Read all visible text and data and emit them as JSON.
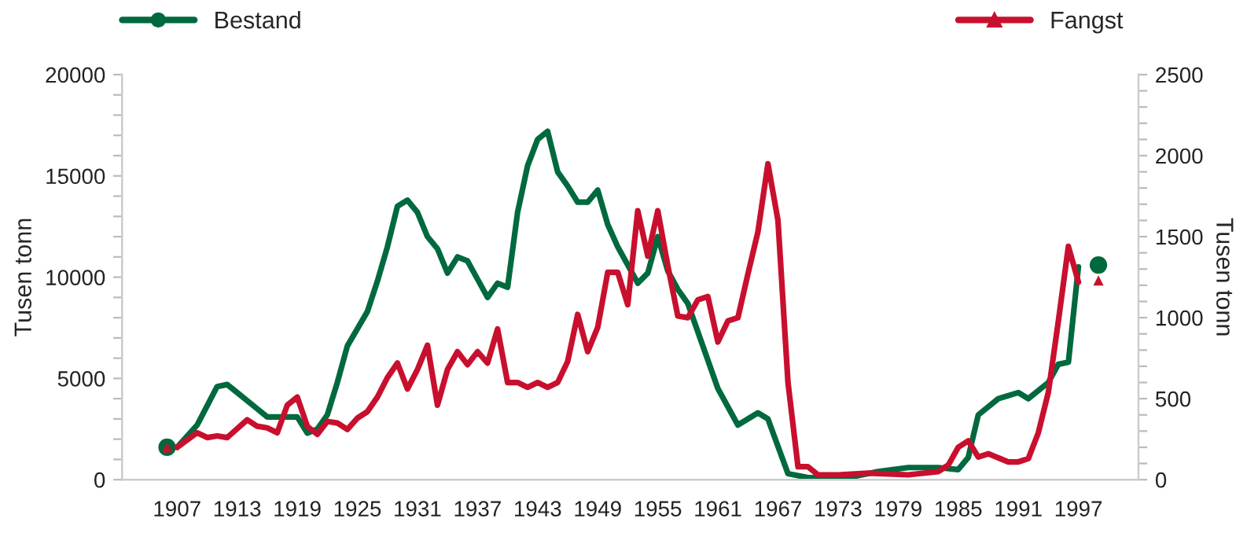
{
  "chart_data": {
    "type": "line",
    "ylabel": "Tusen tonn",
    "y2label": "Tusen tonn",
    "legend": "top",
    "grid": false,
    "line_style": "solid",
    "xlim": [
      1901.5,
      2003
    ],
    "xticks": [
      1907,
      1913,
      1919,
      1925,
      1931,
      1937,
      1943,
      1949,
      1955,
      1961,
      1967,
      1973,
      1979,
      1985,
      1991,
      1997
    ],
    "ylim": [
      0,
      20000
    ],
    "yticks": [
      0,
      {
        "value": 1000,
        "label": null
      },
      {
        "value": 2000,
        "label": null
      },
      {
        "value": 3000,
        "label": null
      },
      {
        "value": 4000,
        "label": null
      },
      5000,
      {
        "value": 6000,
        "label": null
      },
      {
        "value": 7000,
        "label": null
      },
      {
        "value": 8000,
        "label": null
      },
      {
        "value": 9000,
        "label": null
      },
      10000,
      {
        "value": 11000,
        "label": null
      },
      {
        "value": 12000,
        "label": null
      },
      {
        "value": 13000,
        "label": null
      },
      {
        "value": 14000,
        "label": null
      },
      15000,
      {
        "value": 16000,
        "label": null
      },
      {
        "value": 17000,
        "label": null
      },
      {
        "value": 18000,
        "label": null
      },
      {
        "value": 19000,
        "label": null
      },
      20000
    ],
    "y2lim": [
      0,
      2500
    ],
    "y2ticks": [
      0,
      {
        "value": 100,
        "label": null
      },
      {
        "value": 200,
        "label": null
      },
      {
        "value": 300,
        "label": null
      },
      {
        "value": 400,
        "label": null
      },
      500,
      {
        "value": 600,
        "label": null
      },
      {
        "value": 700,
        "label": null
      },
      {
        "value": 800,
        "label": null
      },
      {
        "value": 900,
        "label": null
      },
      1000,
      {
        "value": 1100,
        "label": null
      },
      {
        "value": 1200,
        "label": null
      },
      {
        "value": 1300,
        "label": null
      },
      {
        "value": 1400,
        "label": null
      },
      1500,
      {
        "value": 1600,
        "label": null
      },
      {
        "value": 1700,
        "label": null
      },
      {
        "value": 1800,
        "label": null
      },
      {
        "value": 1900,
        "label": null
      },
      2000,
      {
        "value": 2100,
        "label": null
      },
      {
        "value": 2200,
        "label": null
      },
      {
        "value": 2300,
        "label": null
      },
      {
        "value": 2400,
        "label": null
      },
      2500
    ],
    "series": [
      {
        "name": "Bestand",
        "color": "#00693e",
        "x": [
          1907,
          1909,
          1911,
          1912,
          1913,
          1915,
          1916,
          1919,
          1920,
          1921,
          1922,
          1923,
          1924,
          1926,
          1927,
          1928,
          1929,
          1930,
          1931,
          1932,
          1933,
          1934,
          1935,
          1936,
          1937,
          1938,
          1939,
          1940,
          1941,
          1942,
          1943,
          1944,
          1945,
          1946,
          1947,
          1948,
          1949,
          1950,
          1951,
          1952,
          1953,
          1954,
          1955,
          1956,
          1957,
          1958,
          1961,
          1963,
          1965,
          1966,
          1968,
          1970,
          1973,
          1975,
          1977,
          1980,
          1983,
          1985,
          1986,
          1987,
          1989,
          1991,
          1992,
          1994,
          1995,
          1996,
          1997
        ],
        "values": [
          1600,
          2700,
          4600,
          4700,
          4300,
          3500,
          3100,
          3100,
          2300,
          2500,
          3200,
          4800,
          6600,
          8300,
          9800,
          11500,
          13500,
          13800,
          13200,
          12000,
          11400,
          10200,
          11000,
          10800,
          9900,
          9000,
          9700,
          9500,
          13200,
          15500,
          16800,
          17200,
          15200,
          14500,
          13700,
          13700,
          14300,
          12600,
          11500,
          10600,
          9700,
          10200,
          12000,
          10300,
          9400,
          8700,
          4500,
          2700,
          3300,
          3000,
          300,
          100,
          100,
          200,
          400,
          600,
          600,
          500,
          1100,
          3200,
          4000,
          4300,
          4000,
          4800,
          5700,
          5800,
          10500
        ]
      },
      {
        "name": "Fangst",
        "axis": "y2",
        "color": "#c8102e",
        "x": [
          1907,
          1909,
          1910,
          1911,
          1912,
          1914,
          1915,
          1916,
          1917,
          1918,
          1919,
          1920,
          1921,
          1922,
          1923,
          1924,
          1925,
          1926,
          1927,
          1928,
          1929,
          1930,
          1931,
          1932,
          1933,
          1934,
          1935,
          1936,
          1937,
          1938,
          1939,
          1940,
          1941,
          1942,
          1943,
          1944,
          1945,
          1946,
          1947,
          1948,
          1949,
          1950,
          1951,
          1952,
          1953,
          1954,
          1955,
          1956,
          1957,
          1958,
          1959,
          1960,
          1961,
          1962,
          1963,
          1964,
          1965,
          1966,
          1967,
          1968,
          1969,
          1970,
          1971,
          1973,
          1976,
          1980,
          1983,
          1984,
          1985,
          1986,
          1987,
          1988,
          1990,
          1991,
          1992,
          1993,
          1994,
          1995,
          1996,
          1997
        ],
        "values": [
          200,
          290,
          260,
          270,
          260,
          370,
          330,
          320,
          290,
          460,
          510,
          330,
          280,
          360,
          350,
          310,
          380,
          420,
          510,
          630,
          720,
          560,
          680,
          830,
          460,
          680,
          790,
          710,
          790,
          720,
          930,
          600,
          600,
          570,
          600,
          570,
          600,
          730,
          1020,
          790,
          940,
          1280,
          1280,
          1080,
          1660,
          1380,
          1660,
          1320,
          1010,
          1000,
          1110,
          1130,
          850,
          980,
          1000,
          1270,
          1530,
          1950,
          1600,
          600,
          80,
          80,
          30,
          30,
          40,
          30,
          50,
          90,
          200,
          240,
          140,
          160,
          110,
          110,
          130,
          290,
          540,
          980,
          1440,
          1220
        ]
      },
      {
        "type": "scatter",
        "color": "#00693e",
        "marker": "circle",
        "x": [
          1906,
          1999
        ],
        "values": [
          1600,
          10600
        ]
      },
      {
        "type": "scatter",
        "axis": "y2",
        "color": "#c8102e",
        "marker": "triangle",
        "x": [
          1906,
          1999
        ],
        "values": [
          200,
          1230
        ]
      }
    ]
  }
}
